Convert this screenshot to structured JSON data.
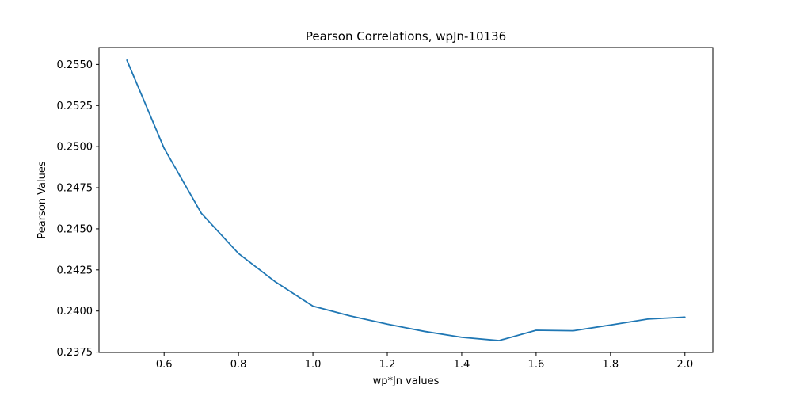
{
  "chart_data": {
    "type": "line",
    "title": "Pearson Correlations, wpJn-10136",
    "xlabel": "wp*Jn values",
    "ylabel": "Pearson Values",
    "xlim": [
      0.425,
      2.075
    ],
    "ylim": [
      0.23748,
      0.25603
    ],
    "xticks": [
      0.6,
      0.8,
      1.0,
      1.2,
      1.4,
      1.6,
      1.8,
      2.0
    ],
    "xtick_labels": [
      "0.6",
      "0.8",
      "1.0",
      "1.2",
      "1.4",
      "1.6",
      "1.8",
      "2.0"
    ],
    "yticks": [
      0.2375,
      0.24,
      0.2425,
      0.245,
      0.2475,
      0.25,
      0.2525,
      0.255
    ],
    "ytick_labels": [
      "0.2375",
      "0.2400",
      "0.2425",
      "0.2450",
      "0.2475",
      "0.2500",
      "0.2525",
      "0.2550"
    ],
    "grid": false,
    "line_color": "#1f77b4",
    "series": [
      {
        "x": [
          0.5,
          0.6,
          0.7,
          0.8,
          0.9,
          1.0,
          1.1,
          1.2,
          1.3,
          1.4,
          1.5,
          1.6,
          1.7,
          1.8,
          1.9,
          2.0
        ],
        "values": [
          0.25526,
          0.2499,
          0.24595,
          0.2435,
          0.24176,
          0.2403,
          0.2397,
          0.2392,
          0.23876,
          0.2384,
          0.2382,
          0.23883,
          0.2388,
          0.23915,
          0.23951,
          0.23963
        ]
      }
    ]
  }
}
